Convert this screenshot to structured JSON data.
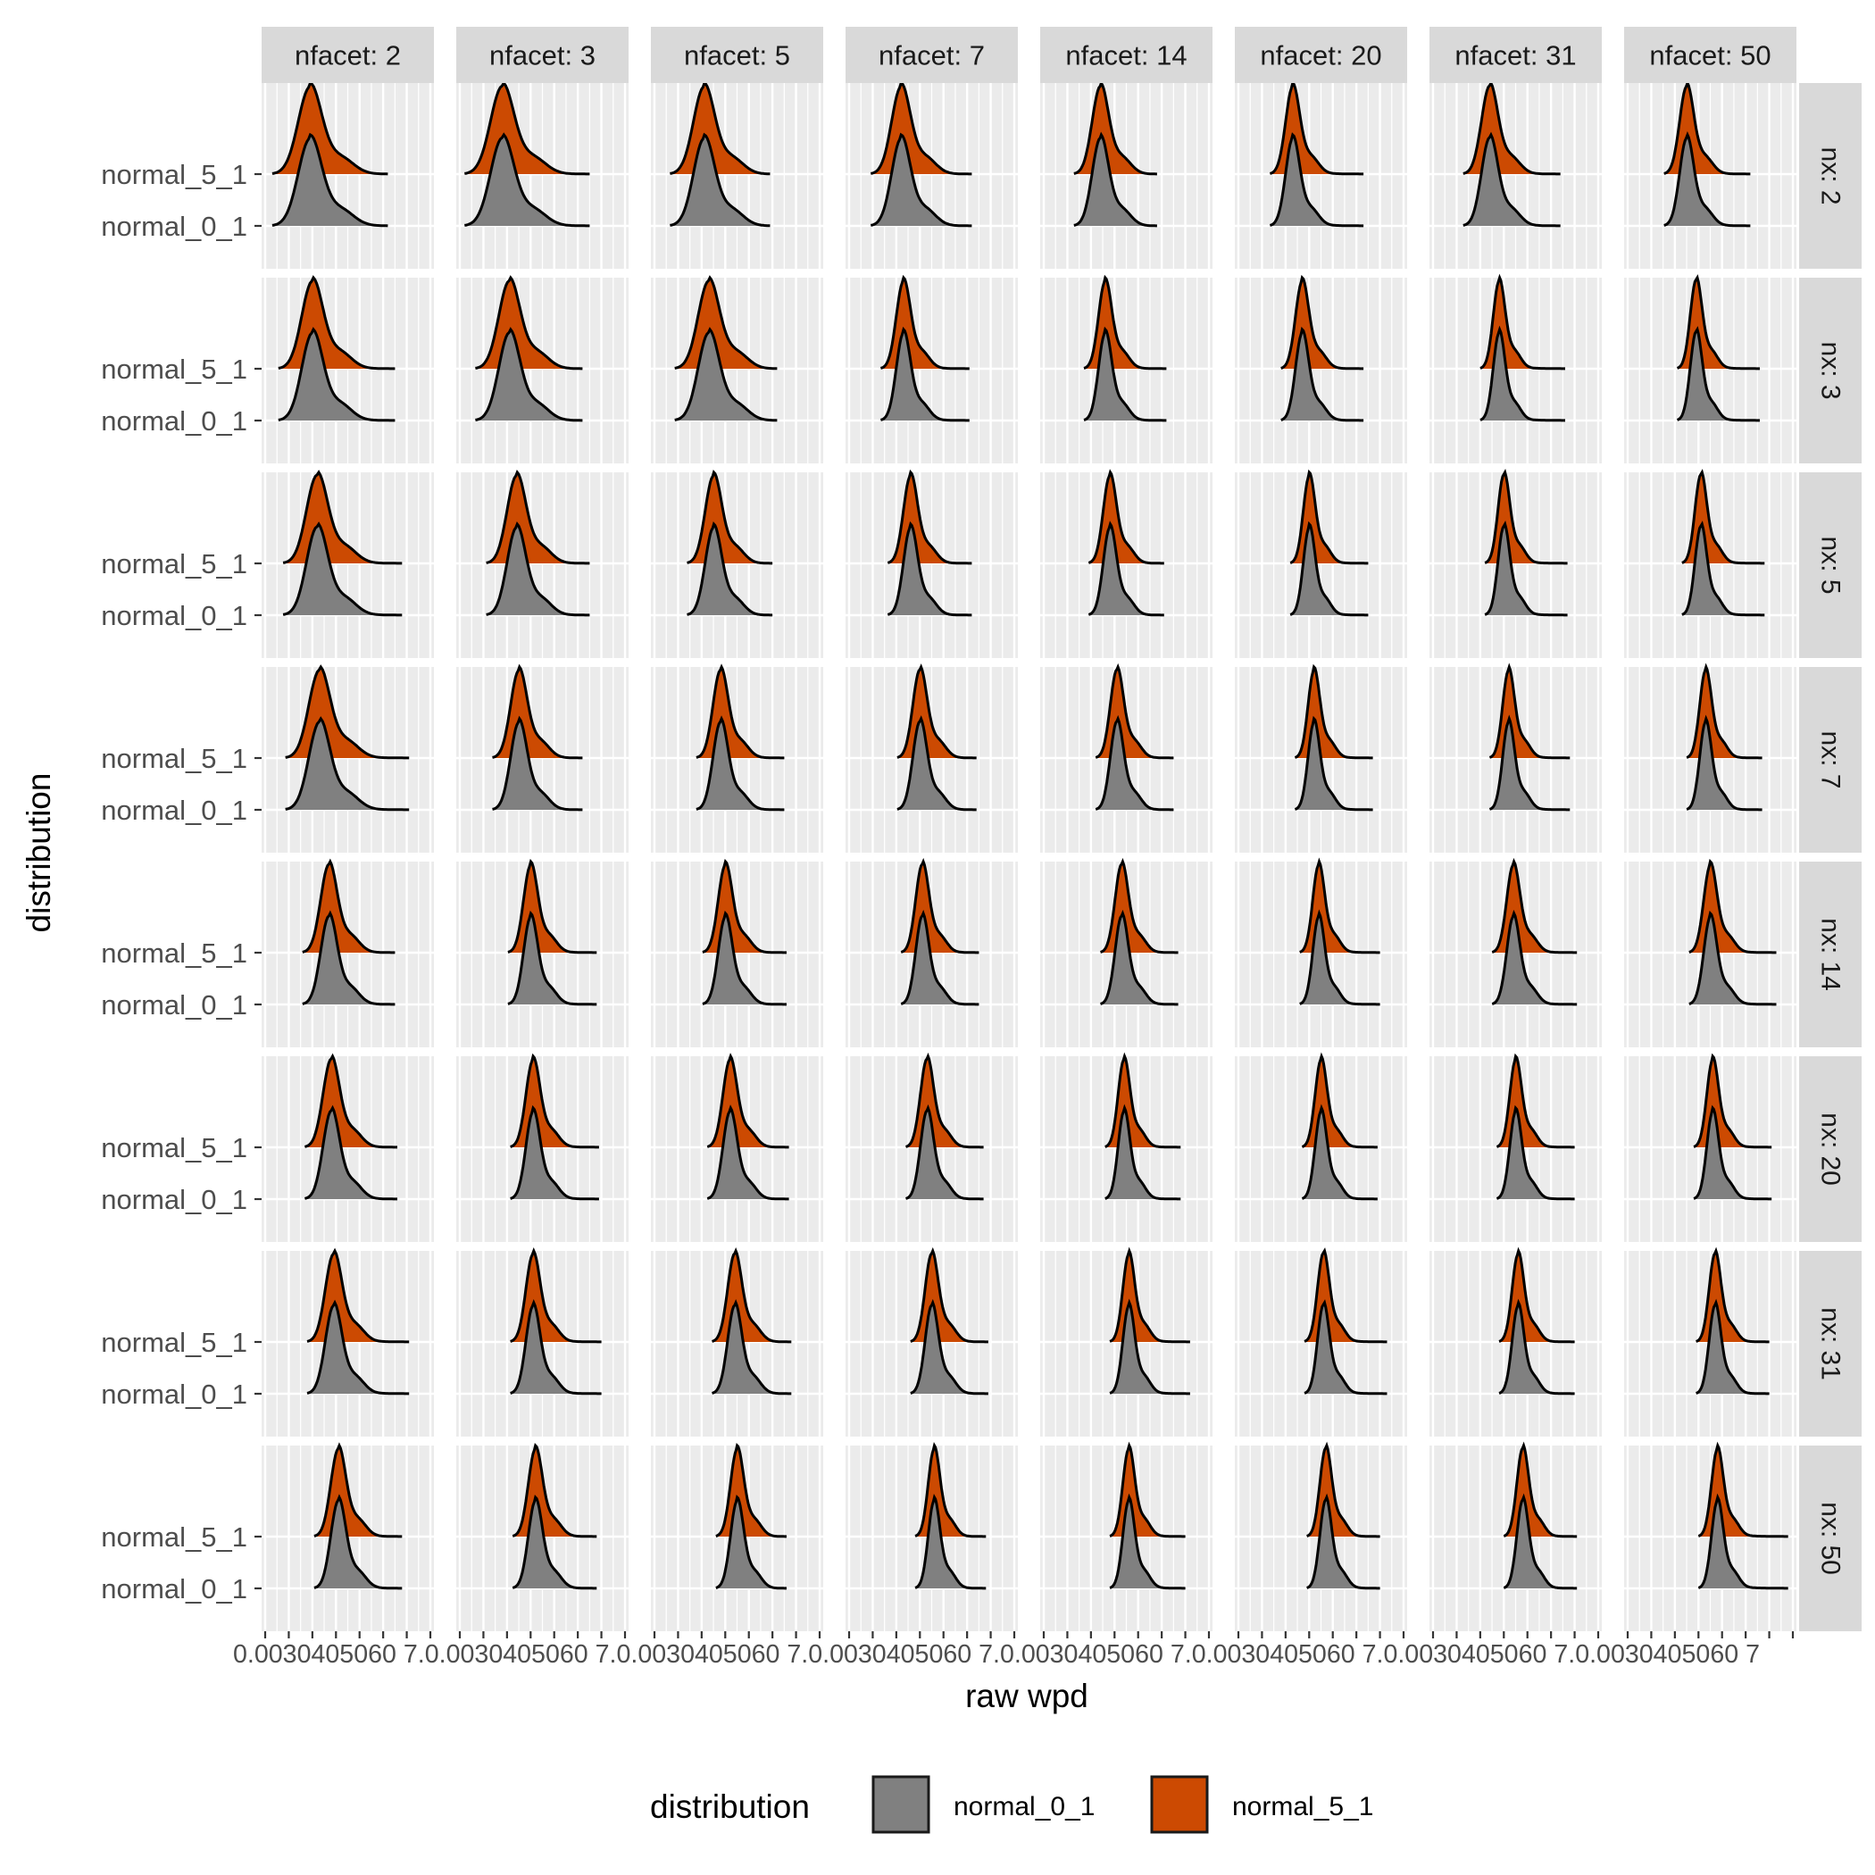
{
  "chart_data": {
    "type": "ridgeline-density-grid",
    "xlabel": "raw wpd",
    "ylabel": "distribution",
    "xlim": [
      0.0,
      0.07
    ],
    "x_ticks": [
      0.0,
      0.01,
      0.02,
      0.03,
      0.04,
      0.05,
      0.06,
      0.07
    ],
    "x_tick_labels": [
      "0.00",
      "0.01",
      "0.02",
      "0.03",
      "0.04",
      "0.05",
      "0.06",
      "0.07"
    ],
    "x_tick_label_row": "0.0030405060 7.0.0030405060 7.0.0030405060 7.0.0030405060 7.0.0030405060 7.0.0030405060 7.0.0030405060 7.0.0030405060 7",
    "y_categories": [
      "normal_0_1",
      "normal_5_1"
    ],
    "col_facet_labels": [
      "nfacet: 2",
      "nfacet: 3",
      "nfacet: 5",
      "nfacet: 7",
      "nfacet: 14",
      "nfacet: 20",
      "nfacet: 31",
      "nfacet: 50"
    ],
    "row_facet_labels": [
      "nx: 2",
      "nx: 3",
      "nx: 5",
      "nx: 7",
      "nx: 14",
      "nx: 20",
      "nx: 31",
      "nx: 50"
    ],
    "nfacet": [
      2,
      3,
      5,
      7,
      14,
      20,
      31,
      50
    ],
    "nx": [
      2,
      3,
      5,
      7,
      14,
      20,
      31,
      50
    ],
    "series": [
      {
        "name": "normal_0_1",
        "color": "#808080"
      },
      {
        "name": "normal_5_1",
        "color": "#CC4A02"
      }
    ],
    "legend": {
      "title": "distribution",
      "position": "bottom",
      "entries": [
        "normal_0_1",
        "normal_5_1"
      ]
    },
    "peak_grid_note": "approximate peak location of raw wpd density per panel [row nx][col nfacet]",
    "peaks": [
      [
        0.019,
        0.018,
        0.021,
        0.022,
        0.024,
        0.023,
        0.024,
        0.025
      ],
      [
        0.02,
        0.021,
        0.023,
        0.023,
        0.026,
        0.027,
        0.028,
        0.029
      ],
      [
        0.022,
        0.024,
        0.025,
        0.026,
        0.028,
        0.03,
        0.03,
        0.031
      ],
      [
        0.023,
        0.025,
        0.028,
        0.03,
        0.031,
        0.032,
        0.032,
        0.033
      ],
      [
        0.027,
        0.03,
        0.03,
        0.031,
        0.033,
        0.034,
        0.034,
        0.035
      ],
      [
        0.028,
        0.031,
        0.032,
        0.033,
        0.034,
        0.035,
        0.035,
        0.036
      ],
      [
        0.029,
        0.031,
        0.034,
        0.035,
        0.036,
        0.036,
        0.036,
        0.037
      ],
      [
        0.031,
        0.032,
        0.035,
        0.036,
        0.036,
        0.037,
        0.038,
        0.038
      ]
    ],
    "spreads": [
      [
        0.005,
        0.005,
        0.0045,
        0.004,
        0.0035,
        0.003,
        0.0035,
        0.003
      ],
      [
        0.0045,
        0.0045,
        0.0045,
        0.003,
        0.0028,
        0.0028,
        0.0025,
        0.0025
      ],
      [
        0.0045,
        0.004,
        0.0035,
        0.003,
        0.0028,
        0.0025,
        0.0025,
        0.0025
      ],
      [
        0.0045,
        0.0035,
        0.0032,
        0.003,
        0.0028,
        0.0025,
        0.0025,
        0.0025
      ],
      [
        0.0035,
        0.003,
        0.003,
        0.0028,
        0.0028,
        0.0025,
        0.0028,
        0.0028
      ],
      [
        0.0035,
        0.003,
        0.003,
        0.0028,
        0.0025,
        0.0025,
        0.0025,
        0.0025
      ],
      [
        0.0035,
        0.003,
        0.003,
        0.0028,
        0.0025,
        0.0025,
        0.0025,
        0.0025
      ],
      [
        0.0032,
        0.003,
        0.0028,
        0.0025,
        0.0025,
        0.0025,
        0.0025,
        0.0025
      ]
    ],
    "tail_ends": [
      [
        0.052,
        0.055,
        0.049,
        0.052,
        0.048,
        0.053,
        0.054,
        0.052
      ],
      [
        0.055,
        0.052,
        0.052,
        0.051,
        0.052,
        0.053,
        0.056,
        0.056
      ],
      [
        0.058,
        0.055,
        0.05,
        0.052,
        0.051,
        0.055,
        0.057,
        0.058
      ],
      [
        0.061,
        0.052,
        0.055,
        0.054,
        0.055,
        0.057,
        0.058,
        0.057
      ],
      [
        0.055,
        0.058,
        0.056,
        0.055,
        0.057,
        0.06,
        0.061,
        0.063
      ],
      [
        0.056,
        0.059,
        0.057,
        0.057,
        0.058,
        0.059,
        0.06,
        0.061
      ],
      [
        0.061,
        0.06,
        0.058,
        0.059,
        0.062,
        0.063,
        0.06,
        0.06
      ],
      [
        0.058,
        0.058,
        0.056,
        0.058,
        0.06,
        0.06,
        0.061,
        0.068
      ]
    ]
  }
}
